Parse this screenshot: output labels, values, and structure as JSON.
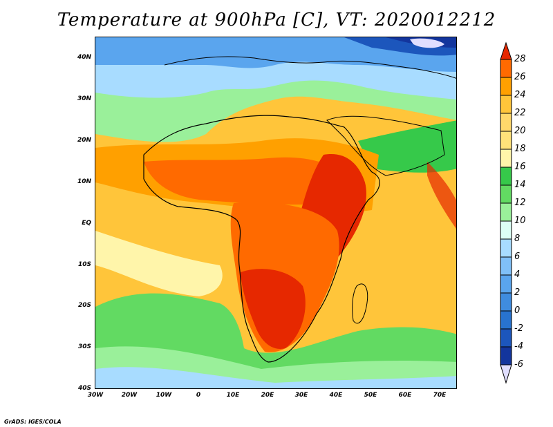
{
  "title": "Temperature at 900hPa [C], VT: 2020012212",
  "credit": "GrADS: IGES/COLA",
  "map": {
    "projection": "lat-lon",
    "lon_range": [
      -30,
      75
    ],
    "lat_range": [
      -40,
      45
    ],
    "lat_labels": [
      "40N",
      "30N",
      "20N",
      "10N",
      "EQ",
      "10S",
      "20S",
      "30S",
      "40S"
    ],
    "lon_labels": [
      "30W",
      "20W",
      "10W",
      "0",
      "10E",
      "20E",
      "30E",
      "40E",
      "50E",
      "60E",
      "70E"
    ]
  },
  "colorbar": {
    "labels": [
      "28",
      "26",
      "24",
      "22",
      "20",
      "18",
      "16",
      "14",
      "12",
      "10",
      "8",
      "6",
      "4",
      "2",
      "0",
      "-2",
      "-4",
      "-6"
    ],
    "colors": [
      "#e62800",
      "#ff6a00",
      "#ffa000",
      "#ffc53a",
      "#ffe27a",
      "#fff5aa",
      "#36c94a",
      "#62da62",
      "#9af09a",
      "#dcfff5",
      "#a8dcff",
      "#80c0f8",
      "#5aa5ee",
      "#3f8cdf",
      "#2873cf",
      "#1c56bc",
      "#13359d",
      "#e0deff"
    ]
  },
  "chart_data": {
    "type": "heatmap",
    "title": "Temperature at 900hPa [C], VT: 2020012212",
    "units": "C",
    "xlabel": "",
    "ylabel": "",
    "x_ticks": [
      "30W",
      "20W",
      "10W",
      "0",
      "10E",
      "20E",
      "30E",
      "40E",
      "50E",
      "60E",
      "70E"
    ],
    "y_ticks": [
      "40N",
      "30N",
      "20N",
      "10N",
      "EQ",
      "10S",
      "20S",
      "30S",
      "40S"
    ],
    "color_levels": [
      -6,
      -4,
      -2,
      0,
      2,
      4,
      6,
      8,
      10,
      12,
      14,
      16,
      18,
      20,
      22,
      24,
      26,
      28
    ]
  }
}
